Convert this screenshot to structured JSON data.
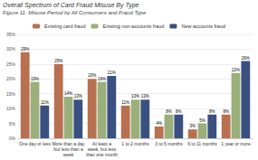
{
  "chart_data": {
    "type": "bar",
    "title": "Overall Spectrum of Card Fraud Misuse By Type",
    "subtitle": "Figure 11: Misuse Period by All Consumers and Fraud Type",
    "categories": [
      "One day or less",
      "More than a day\nbut less than a\nweek",
      "At least a\nweek, but less\nthan one month",
      "1 to 2 months",
      "3 to 5 months",
      "6 to 11 months",
      "1 year or more"
    ],
    "series": [
      {
        "name": "Existing card fraud",
        "color": "#B87050",
        "values": [
          29,
          25,
          20,
          11,
          4,
          3,
          8
        ],
        "value_labels": [
          "29%",
          "25%",
          "20%",
          "11%",
          "4%",
          "3%",
          "8%"
        ]
      },
      {
        "name": "Existing non-accounts fraud",
        "color": "#9AAF7A",
        "values": [
          19,
          14,
          19,
          13,
          8,
          5,
          22
        ],
        "value_labels": [
          "19%",
          "14%",
          "19%",
          "13%",
          "8%",
          "5%",
          "22%"
        ]
      },
      {
        "name": "New accounts fraud",
        "color": "#3A5080",
        "values": [
          11,
          13,
          21,
          13,
          8,
          8,
          26
        ],
        "value_labels": [
          "11%",
          "13%",
          "21%",
          "13%",
          "8%",
          "8%",
          "26%"
        ]
      }
    ],
    "ylim": [
      0,
      35
    ],
    "yticks": [
      {
        "value": 0,
        "label": "0%"
      },
      {
        "value": 5,
        "label": "5%"
      },
      {
        "value": 10,
        "label": "10%"
      },
      {
        "value": 15,
        "label": "15%"
      },
      {
        "value": 20,
        "label": "20%"
      },
      {
        "value": 25,
        "label": "25%"
      },
      {
        "value": 30,
        "label": "30%"
      },
      {
        "value": 35,
        "label": "35%"
      }
    ],
    "grid": true,
    "legend": "top",
    "data_labels": true
  }
}
